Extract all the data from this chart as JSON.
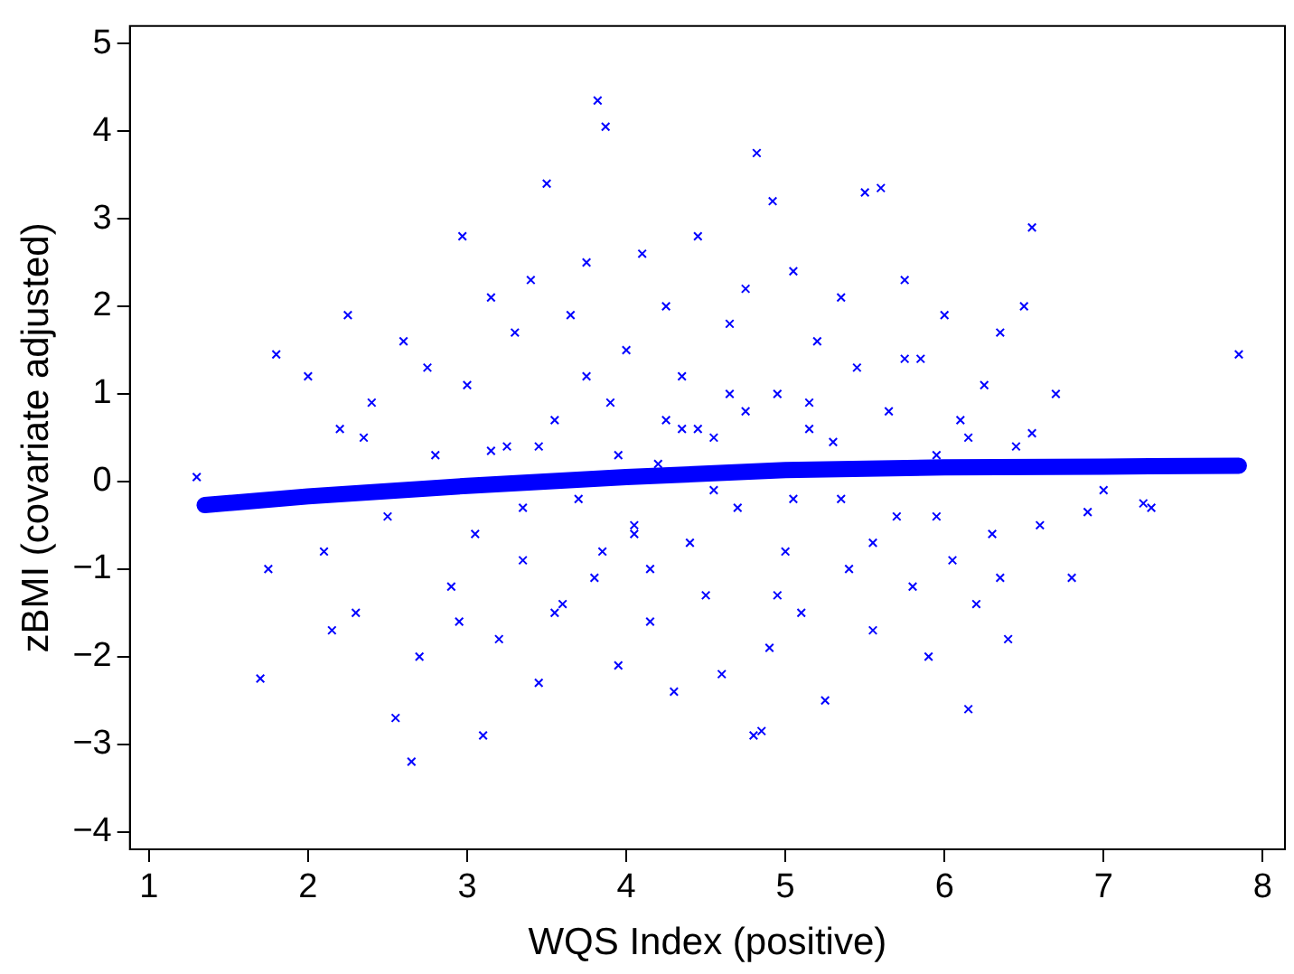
{
  "chart_data": {
    "type": "scatter",
    "xlabel": "WQS Index (positive)",
    "ylabel": "zBMI (covariate adjusted)",
    "xlim": [
      0.88,
      8.14
    ],
    "ylim": [
      -4.2,
      5.2
    ],
    "xticks": [
      1,
      2,
      3,
      4,
      5,
      6,
      7,
      8
    ],
    "yticks": [
      -4,
      -3,
      -2,
      -1,
      0,
      1,
      2,
      3,
      4,
      5
    ],
    "grid": false,
    "legend": false,
    "series": [
      {
        "type": "scatter",
        "color": "#0000ff",
        "marker": "cross",
        "x": [
          3.82,
          3.87,
          4.82,
          4.92,
          3.5,
          5.6,
          5.5,
          2.97,
          6.55,
          7.85,
          2.65,
          3.1,
          4.8,
          4.85,
          1.7,
          1.75,
          1.8,
          1.3,
          2.25,
          6.15,
          7.3,
          7.0,
          7.25,
          2.0,
          2.1,
          2.2,
          2.3,
          2.4,
          2.5,
          2.6,
          2.7,
          2.8,
          2.9,
          3.0,
          3.05,
          3.15,
          3.2,
          3.25,
          3.3,
          3.35,
          3.4,
          3.45,
          3.55,
          3.6,
          3.65,
          3.7,
          3.75,
          3.8,
          3.9,
          3.95,
          4.0,
          4.05,
          4.1,
          4.15,
          4.2,
          4.25,
          4.3,
          4.35,
          4.4,
          4.45,
          4.5,
          4.55,
          4.6,
          4.65,
          4.7,
          4.75,
          4.9,
          4.95,
          5.0,
          5.05,
          5.1,
          5.15,
          5.2,
          5.25,
          5.3,
          5.35,
          5.4,
          5.45,
          5.55,
          5.65,
          5.7,
          5.75,
          5.8,
          5.85,
          5.9,
          5.95,
          6.0,
          6.05,
          6.1,
          6.2,
          6.25,
          6.3,
          6.35,
          6.4,
          6.45,
          6.5,
          6.6,
          6.7,
          6.8,
          6.9,
          2.15,
          2.35,
          2.55,
          2.75,
          2.95,
          3.15,
          3.35,
          3.55,
          3.75,
          3.95,
          4.15,
          4.35,
          4.55,
          4.75,
          4.95,
          5.15,
          5.35,
          5.55,
          5.75,
          5.95,
          6.15,
          6.35,
          6.55,
          4.05,
          4.45,
          5.05,
          3.45,
          3.85,
          4.25,
          4.65
        ],
        "values": [
          4.35,
          4.05,
          3.75,
          3.2,
          3.4,
          3.35,
          3.3,
          2.8,
          2.9,
          1.45,
          -3.2,
          -2.9,
          -2.9,
          -2.85,
          -2.25,
          -1.0,
          1.45,
          0.05,
          1.9,
          -2.6,
          -0.3,
          -0.1,
          -0.25,
          1.2,
          -0.8,
          0.6,
          -1.5,
          0.9,
          -0.4,
          1.6,
          -2.0,
          0.3,
          -1.2,
          1.1,
          -0.6,
          2.1,
          -1.8,
          0.4,
          1.7,
          -0.9,
          2.3,
          -2.3,
          0.7,
          -1.4,
          1.9,
          -0.2,
          2.5,
          -1.1,
          0.9,
          -2.1,
          1.5,
          -0.5,
          2.6,
          -1.6,
          0.2,
          2.0,
          -2.4,
          1.2,
          -0.7,
          2.8,
          -1.3,
          0.5,
          -2.2,
          1.8,
          -0.3,
          2.2,
          -1.9,
          1.0,
          -0.8,
          2.4,
          -1.5,
          0.6,
          1.6,
          -2.5,
          0.45,
          2.1,
          -1.0,
          1.3,
          -1.7,
          0.8,
          -0.4,
          2.3,
          -1.2,
          1.4,
          -2.0,
          0.3,
          1.9,
          -0.9,
          0.7,
          -1.4,
          1.1,
          -0.6,
          1.7,
          -1.8,
          0.4,
          2.0,
          -0.5,
          1.0,
          -1.1,
          -0.35,
          -1.7,
          0.5,
          -2.7,
          1.3,
          -1.6,
          0.35,
          -0.3,
          -1.5,
          1.2,
          0.3,
          -1.0,
          0.6,
          -0.1,
          0.8,
          -1.3,
          0.9,
          -0.2,
          -0.7,
          1.4,
          -0.4,
          0.5,
          -1.1,
          0.55,
          -0.6,
          0.6,
          -0.2,
          0.4,
          -0.8,
          0.7,
          1.0
        ]
      },
      {
        "type": "line",
        "color": "#0000ff",
        "x": [
          1.35,
          2,
          3,
          4,
          5,
          6,
          7,
          7.85
        ],
        "values": [
          -0.27,
          -0.17,
          -0.05,
          0.05,
          0.13,
          0.16,
          0.17,
          0.18
        ]
      }
    ]
  }
}
